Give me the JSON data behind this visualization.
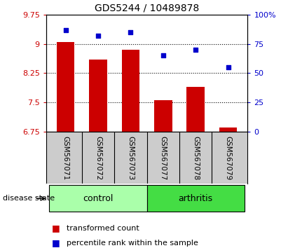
{
  "title": "GDS5244 / 10489878",
  "samples": [
    "GSM567071",
    "GSM567072",
    "GSM567073",
    "GSM567077",
    "GSM567078",
    "GSM567079"
  ],
  "bar_values": [
    9.05,
    8.6,
    8.85,
    7.55,
    7.9,
    6.85
  ],
  "dot_values": [
    87,
    82,
    85,
    65,
    70,
    55
  ],
  "ylim_left": [
    6.75,
    9.75
  ],
  "ylim_right": [
    0,
    100
  ],
  "yticks_left": [
    6.75,
    7.5,
    8.25,
    9.0,
    9.75
  ],
  "ytick_labels_left": [
    "6.75",
    "7.5",
    "8.25",
    "9",
    "9.75"
  ],
  "yticks_right": [
    0,
    25,
    50,
    75,
    100
  ],
  "ytick_labels_right": [
    "0",
    "25",
    "50",
    "75",
    "100%"
  ],
  "bar_color": "#cc0000",
  "dot_color": "#0000cc",
  "bar_width": 0.55,
  "hlines": [
    7.5,
    8.25,
    9.0
  ],
  "control_color": "#aaffaa",
  "arthritis_color": "#44dd44",
  "group_label_control": "control",
  "group_label_arthritis": "arthritis",
  "disease_state_label": "disease state",
  "legend_bar_label": "transformed count",
  "legend_dot_label": "percentile rank within the sample",
  "bottom_gray": "#cccccc",
  "left_tick_color": "#cc0000",
  "right_tick_color": "#0000cc"
}
